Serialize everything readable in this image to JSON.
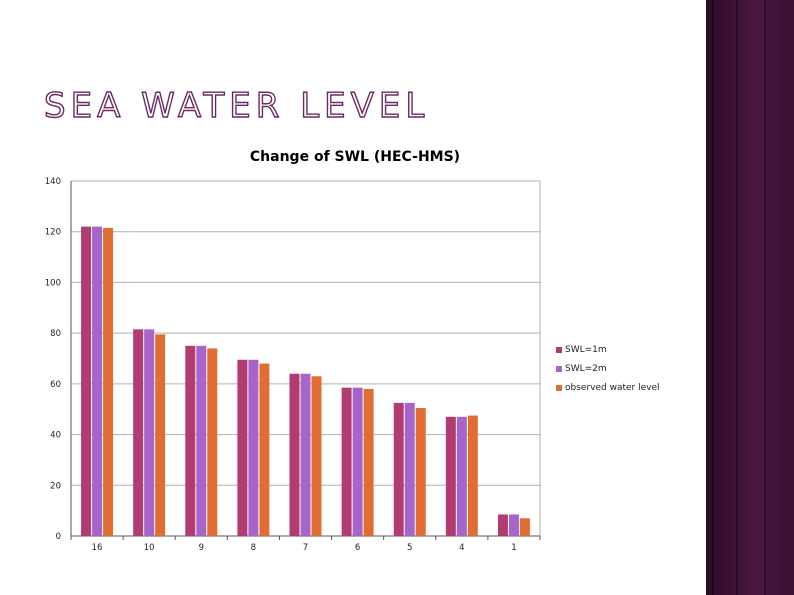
{
  "slide": {
    "title": "SEA WATER LEVEL"
  },
  "colors": {
    "band": "#4a1740",
    "grid": "#b0b0b0",
    "axis": "#555555"
  },
  "chart_data": {
    "type": "bar",
    "title": "Change of SWL (HEC-HMS)",
    "xlabel": "",
    "ylabel": "",
    "ylim": [
      0,
      140
    ],
    "yticks": [
      0,
      20,
      40,
      60,
      80,
      100,
      120,
      140
    ],
    "grid": true,
    "legend_position": "right",
    "categories": [
      "16",
      "10",
      "9",
      "8",
      "7",
      "6",
      "5",
      "4",
      "1"
    ],
    "series": [
      {
        "name": "SWL=1m",
        "color": "#b23c72",
        "values": [
          122,
          81.5,
          75,
          69.5,
          64,
          58.5,
          52.5,
          47,
          8.5
        ]
      },
      {
        "name": "SWL=2m",
        "color": "#a865c9",
        "values": [
          122,
          81.5,
          75,
          69.5,
          64,
          58.5,
          52.5,
          47,
          8.5
        ]
      },
      {
        "name": "observed water level",
        "color": "#e06e32",
        "values": [
          121.5,
          79.5,
          74,
          68,
          63,
          58,
          50.5,
          47.5,
          7
        ]
      }
    ]
  }
}
